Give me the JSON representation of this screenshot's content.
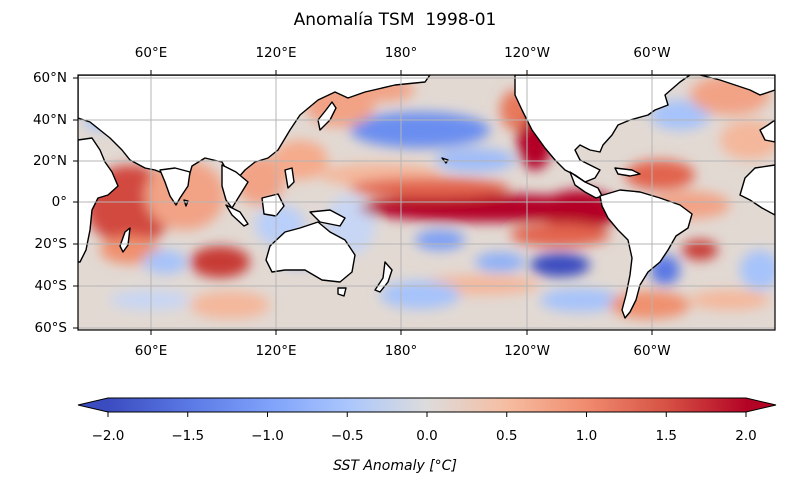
{
  "title": "Anomalía TSM  1998-01",
  "map": {
    "projection": "PlateCarree (central 180°)",
    "lon_range": [
      30,
      390
    ],
    "lat_range": [
      -60,
      62
    ],
    "top_lon_labels": [
      "60°E",
      "120°E",
      "180°",
      "120°W",
      "60°W"
    ],
    "bottom_lon_labels": [
      "60°E",
      "120°E",
      "180°",
      "120°W",
      "60°W"
    ],
    "lat_labels": [
      "60°N",
      "40°N",
      "20°N",
      "0°",
      "20°S",
      "40°S",
      "60°S"
    ],
    "gridlines": true,
    "land_color": "#ffffff",
    "coastline_color": "#000000"
  },
  "colorbar": {
    "cmap": "coolwarm",
    "vmin": -2.0,
    "vmax": 2.0,
    "extend": "both",
    "tick_labels": [
      "−2.0",
      "−1.5",
      "−1.0",
      "−0.5",
      "0.0",
      "0.5",
      "1.0",
      "1.5",
      "2.0"
    ],
    "label": "SST Anomaly [°C]"
  },
  "colors": {
    "cold_extreme": "#3b4cc0",
    "neutral": "#dddddd",
    "warm_extreme": "#b40426"
  }
}
